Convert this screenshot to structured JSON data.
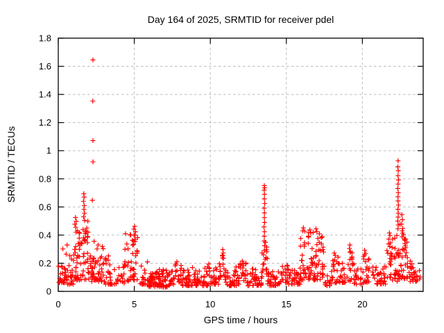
{
  "window": {
    "bg_color": "#ffffff"
  },
  "chart_data": {
    "type": "scatter",
    "title": "Day 164 of 2025, SRMTID for receiver pdel",
    "xlabel": "GPS time / hours",
    "ylabel": "SRMTID / TECUs",
    "xlim": [
      0,
      24
    ],
    "ylim": [
      0,
      1.8
    ],
    "xticks": [
      0,
      5,
      10,
      15,
      20
    ],
    "yticks": [
      0,
      0.2,
      0.4,
      0.6,
      0.8,
      1,
      1.2,
      1.4,
      1.6,
      1.8
    ],
    "grid": true,
    "grid_style": "dashed",
    "grid_color": "#bbbbbb",
    "frame_color": "#000000",
    "legend": "none",
    "marker": {
      "shape": "plus",
      "color": "#ff0000",
      "size": 7
    },
    "seed": 20250164,
    "points": [
      [
        2.28,
        1.645
      ],
      [
        2.27,
        1.352
      ],
      [
        2.28,
        1.072
      ],
      [
        2.28,
        0.921
      ],
      [
        2.24,
        0.648
      ],
      [
        1.68,
        0.695
      ],
      [
        1.7,
        0.67
      ],
      [
        1.66,
        0.64
      ],
      [
        1.71,
        0.61
      ],
      [
        1.69,
        0.583
      ],
      [
        1.73,
        0.556
      ],
      [
        1.67,
        0.53
      ],
      [
        1.72,
        0.505
      ],
      [
        1.13,
        0.525
      ],
      [
        1.18,
        0.498
      ],
      [
        1.09,
        0.478
      ],
      [
        1.15,
        0.455
      ],
      [
        5.02,
        0.462
      ],
      [
        4.97,
        0.443
      ],
      [
        5.08,
        0.424
      ],
      [
        4.42,
        0.41
      ],
      [
        5.05,
        0.4
      ],
      [
        10.82,
        0.298
      ],
      [
        10.85,
        0.272
      ],
      [
        10.79,
        0.252
      ],
      [
        10.87,
        0.235
      ],
      [
        13.55,
        0.752
      ],
      [
        13.57,
        0.737
      ],
      [
        13.54,
        0.72
      ],
      [
        13.56,
        0.69
      ],
      [
        13.55,
        0.658
      ],
      [
        13.58,
        0.625
      ],
      [
        13.54,
        0.592
      ],
      [
        13.56,
        0.558
      ],
      [
        13.55,
        0.524
      ],
      [
        13.57,
        0.49
      ],
      [
        13.53,
        0.458
      ],
      [
        13.56,
        0.424
      ],
      [
        13.55,
        0.392
      ],
      [
        13.54,
        0.358
      ],
      [
        13.57,
        0.325
      ],
      [
        13.55,
        0.292
      ],
      [
        13.5,
        0.26
      ],
      [
        13.6,
        0.228
      ],
      [
        13.52,
        0.196
      ],
      [
        16.12,
        0.452
      ],
      [
        16.08,
        0.43
      ],
      [
        16.55,
        0.438
      ],
      [
        16.6,
        0.415
      ],
      [
        16.95,
        0.445
      ],
      [
        17.0,
        0.425
      ],
      [
        17.3,
        0.382
      ],
      [
        18.15,
        0.272
      ],
      [
        18.22,
        0.255
      ],
      [
        19.18,
        0.33
      ],
      [
        19.15,
        0.305
      ],
      [
        19.22,
        0.282
      ],
      [
        20.15,
        0.292
      ],
      [
        20.22,
        0.27
      ],
      [
        21.78,
        0.415
      ],
      [
        21.82,
        0.398
      ],
      [
        21.74,
        0.372
      ],
      [
        21.85,
        0.345
      ],
      [
        21.8,
        0.318
      ],
      [
        22.35,
        0.928
      ],
      [
        22.33,
        0.885
      ],
      [
        22.36,
        0.858
      ],
      [
        22.34,
        0.822
      ],
      [
        22.37,
        0.792
      ],
      [
        22.35,
        0.763
      ],
      [
        22.33,
        0.732
      ],
      [
        22.36,
        0.702
      ],
      [
        22.34,
        0.672
      ],
      [
        22.35,
        0.643
      ],
      [
        22.37,
        0.613
      ],
      [
        22.34,
        0.584
      ],
      [
        22.36,
        0.556
      ],
      [
        22.35,
        0.528
      ],
      [
        22.33,
        0.5
      ],
      [
        22.36,
        0.472
      ],
      [
        22.34,
        0.445
      ],
      [
        22.6,
        0.545
      ],
      [
        22.63,
        0.51
      ],
      [
        22.58,
        0.478
      ],
      [
        22.66,
        0.448
      ],
      [
        22.62,
        0.43
      ],
      [
        22.7,
        0.402
      ],
      [
        22.75,
        0.372
      ],
      [
        22.8,
        0.34
      ],
      [
        22.85,
        0.31
      ],
      [
        22.9,
        0.275
      ],
      [
        22.96,
        0.24
      ],
      [
        7.8,
        0.21
      ],
      [
        7.75,
        0.195
      ],
      [
        12.1,
        0.215
      ],
      [
        12.18,
        0.2
      ],
      [
        9.9,
        0.195
      ],
      [
        3.3,
        0.252
      ],
      [
        2.62,
        0.33
      ],
      [
        2.55,
        0.302
      ],
      [
        0.58,
        0.33
      ],
      [
        0.3,
        0.302
      ],
      [
        23.15,
        0.215
      ],
      [
        23.25,
        0.195
      ]
    ],
    "density_bands": [
      [
        0.02,
        0.55,
        26,
        0.06,
        0.28,
        2.0
      ],
      [
        0.55,
        1.0,
        22,
        0.05,
        0.26,
        2.0
      ],
      [
        1.0,
        1.45,
        32,
        0.08,
        0.46,
        1.7
      ],
      [
        1.45,
        2.0,
        36,
        0.08,
        0.55,
        1.7
      ],
      [
        2.0,
        2.2,
        10,
        0.07,
        0.26,
        1.8
      ],
      [
        2.2,
        2.42,
        14,
        0.08,
        0.42,
        1.5
      ],
      [
        2.42,
        3.1,
        32,
        0.07,
        0.32,
        2.0
      ],
      [
        3.1,
        3.6,
        20,
        0.05,
        0.24,
        2.1
      ],
      [
        3.6,
        4.35,
        20,
        0.05,
        0.18,
        1.8
      ],
      [
        4.35,
        4.62,
        10,
        0.07,
        0.34,
        1.6
      ],
      [
        4.62,
        5.35,
        32,
        0.08,
        0.42,
        1.4
      ],
      [
        5.35,
        5.9,
        20,
        0.05,
        0.21,
        2.0
      ],
      [
        5.9,
        6.35,
        32,
        0.03,
        0.13,
        1.2
      ],
      [
        6.35,
        7.3,
        56,
        0.03,
        0.16,
        1.4
      ],
      [
        7.3,
        7.62,
        12,
        0.05,
        0.15,
        1.5
      ],
      [
        7.62,
        8.1,
        18,
        0.06,
        0.2,
        1.5
      ],
      [
        8.1,
        9.0,
        36,
        0.04,
        0.17,
        1.7
      ],
      [
        9.0,
        10.0,
        40,
        0.04,
        0.18,
        1.7
      ],
      [
        10.0,
        10.55,
        24,
        0.05,
        0.17,
        1.7
      ],
      [
        10.55,
        10.95,
        14,
        0.08,
        0.27,
        1.4
      ],
      [
        10.95,
        11.95,
        40,
        0.04,
        0.18,
        1.8
      ],
      [
        11.95,
        12.4,
        16,
        0.06,
        0.21,
        1.6
      ],
      [
        12.4,
        13.4,
        40,
        0.04,
        0.16,
        1.8
      ],
      [
        13.4,
        13.75,
        14,
        0.1,
        0.35,
        1.2
      ],
      [
        13.75,
        14.7,
        36,
        0.04,
        0.16,
        1.8
      ],
      [
        14.7,
        15.1,
        15,
        0.06,
        0.2,
        1.6
      ],
      [
        15.1,
        15.9,
        30,
        0.05,
        0.18,
        1.7
      ],
      [
        15.9,
        16.7,
        46,
        0.08,
        0.43,
        1.6
      ],
      [
        16.7,
        17.55,
        44,
        0.08,
        0.42,
        1.7
      ],
      [
        17.55,
        18.05,
        18,
        0.04,
        0.18,
        1.8
      ],
      [
        18.05,
        18.5,
        16,
        0.06,
        0.26,
        1.7
      ],
      [
        18.5,
        19.05,
        18,
        0.06,
        0.2,
        1.8
      ],
      [
        19.05,
        19.45,
        15,
        0.07,
        0.3,
        1.5
      ],
      [
        19.45,
        20.0,
        18,
        0.05,
        0.18,
        1.8
      ],
      [
        20.0,
        20.6,
        20,
        0.06,
        0.27,
        1.7
      ],
      [
        20.6,
        21.55,
        34,
        0.05,
        0.18,
        1.8
      ],
      [
        21.55,
        22.05,
        20,
        0.08,
        0.38,
        1.5
      ],
      [
        22.05,
        22.55,
        30,
        0.07,
        0.5,
        1.9
      ],
      [
        22.55,
        23.0,
        26,
        0.09,
        0.42,
        1.6
      ],
      [
        23.0,
        23.55,
        20,
        0.07,
        0.2,
        1.7
      ],
      [
        23.55,
        23.8,
        6,
        0.08,
        0.15,
        1.5
      ]
    ]
  }
}
